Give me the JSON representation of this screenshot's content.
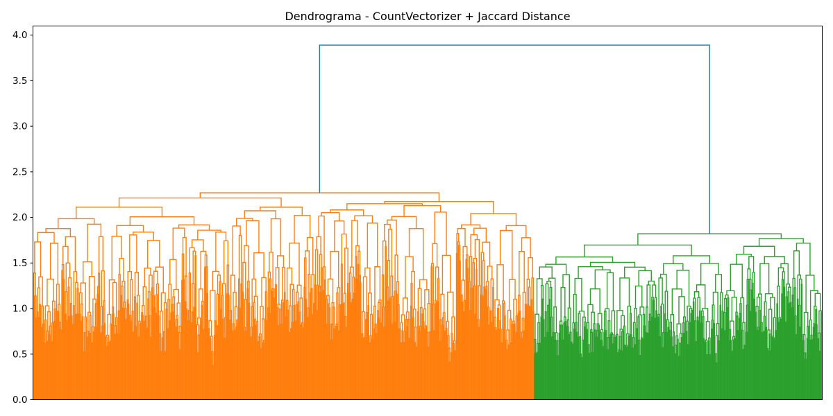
{
  "chart_data": {
    "type": "dendrogram",
    "title": "Dendrograma - CountVectorizer + Jaccard Distance",
    "xlabel": "",
    "ylabel": "",
    "ylim": [
      0,
      4.1
    ],
    "yticks": [
      0.0,
      0.5,
      1.0,
      1.5,
      2.0,
      2.5,
      3.0,
      3.5,
      4.0
    ],
    "ytick_labels": [
      "0.0",
      "0.5",
      "1.0",
      "1.5",
      "2.0",
      "2.5",
      "3.0",
      "3.5",
      "4.0"
    ],
    "x_tick_labels_visible": false,
    "grid": false,
    "leaf_count": 1000,
    "root_merge_height": 3.89,
    "colors": {
      "link_above_threshold": "#1f77b4",
      "cluster_1": "#ff7f0e",
      "cluster_2": "#2ca02c"
    },
    "clusters": [
      {
        "color_key": "cluster_1",
        "leaf_fraction": 0.635,
        "top_merge_height": 2.27,
        "upper_merges": [
          {
            "height": 2.27,
            "children": [
              "L",
              "R"
            ]
          },
          {
            "height": 1.9,
            "side": "L"
          },
          {
            "height": 1.29,
            "side": "R"
          },
          {
            "height": 1.74
          },
          {
            "height": 1.67
          },
          {
            "height": 1.61
          },
          {
            "height": 1.48
          },
          {
            "height": 1.43
          },
          {
            "height": 1.43
          },
          {
            "height": 1.39
          },
          {
            "height": 1.38
          },
          {
            "height": 1.35
          },
          {
            "height": 1.34
          },
          {
            "height": 1.34
          },
          {
            "height": 1.28
          },
          {
            "height": 1.27
          },
          {
            "height": 1.27
          },
          {
            "height": 1.26
          },
          {
            "height": 1.25
          },
          {
            "height": 1.24
          },
          {
            "height": 1.24
          },
          {
            "height": 1.24
          },
          {
            "height": 1.23
          },
          {
            "height": 1.22
          },
          {
            "height": 1.2
          }
        ],
        "leaf_merge_range": [
          0.82,
          1.2
        ]
      },
      {
        "color_key": "cluster_2",
        "leaf_fraction": 0.365,
        "top_merge_height": 1.82,
        "upper_merges": [
          {
            "height": 1.82
          },
          {
            "height": 1.76
          },
          {
            "height": 1.56
          },
          {
            "height": 1.5
          },
          {
            "height": 1.49
          },
          {
            "height": 1.47
          },
          {
            "height": 1.41
          },
          {
            "height": 1.39
          },
          {
            "height": 1.38
          },
          {
            "height": 1.33
          },
          {
            "height": 1.32
          },
          {
            "height": 1.3
          },
          {
            "height": 1.28
          },
          {
            "height": 1.27
          },
          {
            "height": 1.24
          },
          {
            "height": 1.23
          },
          {
            "height": 1.22
          },
          {
            "height": 1.19
          },
          {
            "height": 1.17
          },
          {
            "height": 1.16
          },
          {
            "height": 1.14
          },
          {
            "height": 1.13
          }
        ],
        "leaf_merge_range": [
          0.84,
          1.2
        ]
      }
    ]
  }
}
